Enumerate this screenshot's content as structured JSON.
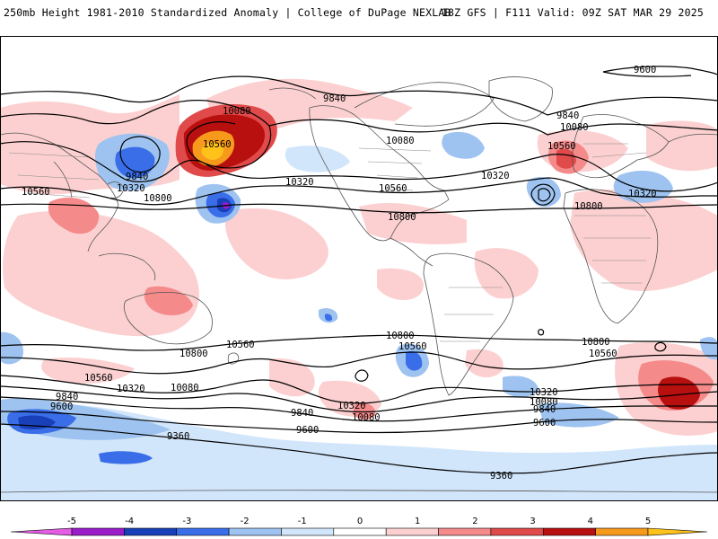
{
  "header": {
    "left": "250mb Height 1981-2010 Standardized Anomaly | College of DuPage NEXLAB",
    "right": "18Z GFS | F111 Valid: 09Z SAT MAR 29 2025"
  },
  "colorbar": {
    "ticks": [
      "-5",
      "-4",
      "-3",
      "-2",
      "-1",
      "0",
      "1",
      "2",
      "3",
      "4",
      "5"
    ],
    "colors": [
      "#e55ce5",
      "#9b1ccb",
      "#1940b8",
      "#3a6ee8",
      "#9ec3f0",
      "#d2e6fb",
      "#ffffff",
      "#fcd0d0",
      "#f48a8a",
      "#e04a4a",
      "#b80f0f",
      "#f79a1c",
      "#ffc21a"
    ]
  },
  "contour_labels": [
    {
      "text": "9600",
      "name": "contour-label-9600-arctic"
    },
    {
      "text": "9840",
      "name": "contour-label-9840-pacific"
    },
    {
      "text": "10080",
      "name": "contour-label-10080-alaska"
    },
    {
      "text": "10560",
      "name": "contour-label-10560-ridge"
    },
    {
      "text": "9840",
      "name": "contour-label-9840-asia"
    },
    {
      "text": "10320",
      "name": "contour-label-10320-asia"
    },
    {
      "text": "10560",
      "name": "contour-label-10560-west"
    },
    {
      "text": "10800",
      "name": "contour-label-10800-pacific"
    },
    {
      "text": "10320",
      "name": "contour-label-10320-canada"
    },
    {
      "text": "10080",
      "name": "contour-label-10080-canada"
    },
    {
      "text": "10560",
      "name": "contour-label-10560-us"
    },
    {
      "text": "10800",
      "name": "contour-label-10800-caribbean"
    },
    {
      "text": "10320",
      "name": "contour-label-10320-atlantic"
    },
    {
      "text": "9840",
      "name": "contour-label-9840-atlantic"
    },
    {
      "text": "10080",
      "name": "contour-label-10080-atlantic"
    },
    {
      "text": "10560",
      "name": "contour-label-10560-europe"
    },
    {
      "text": "10320",
      "name": "contour-label-10320-mideast"
    },
    {
      "text": "10800",
      "name": "contour-label-10800-africa"
    },
    {
      "text": "10800",
      "name": "contour-label-10800-sh-pacific-w"
    },
    {
      "text": "10560",
      "name": "contour-label-10560-sh-pacific-w"
    },
    {
      "text": "10800",
      "name": "contour-label-10800-sh-pacific"
    },
    {
      "text": "10560",
      "name": "contour-label-10560-sh-pacific"
    },
    {
      "text": "10800",
      "name": "contour-label-10800-sh-atlantic"
    },
    {
      "text": "10560",
      "name": "contour-label-10560-sh-atlantic"
    },
    {
      "text": "10560",
      "name": "contour-label-10560-sh-west"
    },
    {
      "text": "10320",
      "name": "contour-label-10320-sh-west"
    },
    {
      "text": "10080",
      "name": "contour-label-10080-sh-west"
    },
    {
      "text": "9840",
      "name": "contour-label-9840-sh-west"
    },
    {
      "text": "9600",
      "name": "contour-label-9600-sh-west"
    },
    {
      "text": "10320",
      "name": "contour-label-10320-sh-pacific"
    },
    {
      "text": "10080",
      "name": "contour-label-10080-sh-pacific"
    },
    {
      "text": "9840",
      "name": "contour-label-9840-sh-pacific"
    },
    {
      "text": "9600",
      "name": "contour-label-9600-sh-pacific"
    },
    {
      "text": "9360",
      "name": "contour-label-9360-sh-west"
    },
    {
      "text": "9360",
      "name": "contour-label-9360-sh-south"
    },
    {
      "text": "10320",
      "name": "contour-label-10320-sh-atlantic"
    },
    {
      "text": "10080",
      "name": "contour-label-10080-sh-atlantic"
    },
    {
      "text": "9840",
      "name": "contour-label-9840-sh-atlantic"
    },
    {
      "text": "9600",
      "name": "contour-label-9600-sh-atlantic"
    }
  ]
}
